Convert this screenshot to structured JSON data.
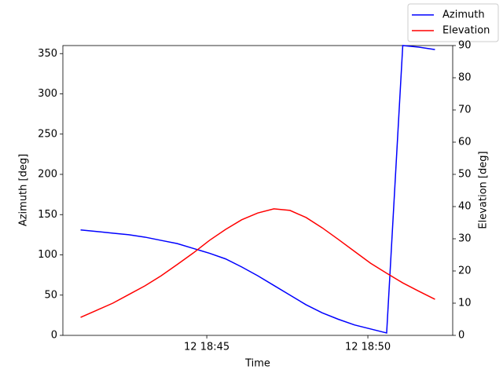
{
  "chart_data": {
    "type": "line",
    "x_label": "Time",
    "y_label": "Azimuth [deg]",
    "y2_label": "Elevation [deg]",
    "x": [
      "12 18:41:05",
      "12 18:41:35",
      "12 18:42:05",
      "12 18:42:35",
      "12 18:43:05",
      "12 18:43:35",
      "12 18:44:05",
      "12 18:44:35",
      "12 18:45:05",
      "12 18:45:35",
      "12 18:46:05",
      "12 18:46:35",
      "12 18:47:05",
      "12 18:47:35",
      "12 18:48:05",
      "12 18:48:35",
      "12 18:49:05",
      "12 18:49:35",
      "12 18:50:05",
      "12 18:50:35",
      "12 18:51:05",
      "12 18:51:35",
      "12 18:52:05"
    ],
    "xlim": [
      "12 18:40:32",
      "12 18:52:38"
    ],
    "xticks": [
      {
        "value": "12 18:45:00",
        "label": "12 18:45"
      },
      {
        "value": "12 18:50:00",
        "label": "12 18:50"
      }
    ],
    "ylim": [
      0,
      360
    ],
    "yticks": [
      0,
      50,
      100,
      150,
      200,
      250,
      300,
      350
    ],
    "y2lim": [
      0,
      90
    ],
    "y2ticks": [
      0,
      10,
      20,
      30,
      40,
      50,
      60,
      70,
      80,
      90
    ],
    "legend": "upper right",
    "series": [
      {
        "name": "Azimuth",
        "color": "#0000ff",
        "values": [
          131,
          129,
          127,
          125,
          122,
          118,
          114,
          108,
          102,
          95,
          85,
          74,
          62,
          50,
          38,
          28,
          20,
          13,
          8,
          3,
          360,
          358,
          355
        ]
      },
      {
        "name": "Elevation",
        "color": "#ff0000",
        "axis": "y2",
        "values": [
          5.6,
          7.8,
          10,
          12.7,
          15.4,
          18.5,
          22,
          25.6,
          29.5,
          32.9,
          35.9,
          38,
          39.3,
          38.8,
          36.6,
          33.4,
          29.8,
          26.1,
          22.4,
          19.3,
          16.3,
          13.7,
          11.2
        ]
      }
    ]
  }
}
